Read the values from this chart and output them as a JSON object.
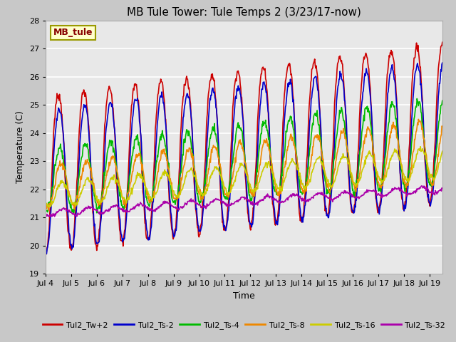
{
  "title": "MB Tule Tower: Tule Temps 2 (3/23/17-now)",
  "xlabel": "Time",
  "ylabel": "Temperature (C)",
  "ylim": [
    19.0,
    28.0
  ],
  "yticks": [
    19.0,
    20.0,
    21.0,
    22.0,
    23.0,
    24.0,
    25.0,
    26.0,
    27.0,
    28.0
  ],
  "xtick_labels": [
    "Jul 4",
    "Jul 5",
    "Jul 6",
    "Jul 7",
    "Jul 8",
    "Jul 9",
    "Jul 10",
    "Jul 11",
    "Jul 12",
    "Jul 13",
    "Jul 14",
    "Jul 15",
    "Jul 16",
    "Jul 17",
    "Jul 18",
    "Jul 19"
  ],
  "legend_label": "MB_tule",
  "series": {
    "Tul2_Tw+2": {
      "color": "#cc0000",
      "linewidth": 1.2
    },
    "Tul2_Ts-2": {
      "color": "#0000cc",
      "linewidth": 1.2
    },
    "Tul2_Ts-4": {
      "color": "#00bb00",
      "linewidth": 1.2
    },
    "Tul2_Ts-8": {
      "color": "#ee8800",
      "linewidth": 1.2
    },
    "Tul2_Ts-16": {
      "color": "#cccc00",
      "linewidth": 1.2
    },
    "Tul2_Ts-32": {
      "color": "#aa00aa",
      "linewidth": 1.2
    }
  },
  "fig_bg_color": "#c8c8c8",
  "plot_bg_color": "#e8e8e8",
  "grid_color": "#ffffff",
  "title_fontsize": 11,
  "axis_fontsize": 9,
  "tick_fontsize": 8,
  "legend_box_facecolor": "#ffffcc",
  "legend_box_edgecolor": "#999900",
  "legend_text_color": "#880000"
}
